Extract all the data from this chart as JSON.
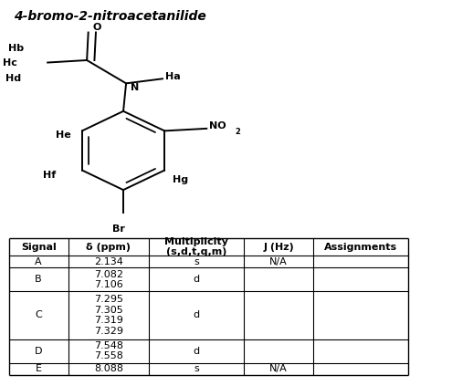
{
  "title": "4-bromo-2-nitroacetanilide",
  "table_headers": [
    "Signal",
    "δ (ppm)",
    "Multiplicity\n(s,d,t,q,m)",
    "J (Hz)",
    "Assignments"
  ],
  "table_rows": [
    [
      "A",
      "2.134",
      "s",
      "N/A",
      ""
    ],
    [
      "B",
      "7.082\n7.106",
      "d",
      "",
      ""
    ],
    [
      "C",
      "7.295\n7.305\n7.319\n7.329",
      "d",
      "",
      ""
    ],
    [
      "D",
      "7.548\n7.558",
      "d",
      "",
      ""
    ],
    [
      "E",
      "8.088",
      "s",
      "N/A",
      ""
    ]
  ],
  "bg_color": "#ffffff",
  "text_color": "#000000",
  "lw": 1.4,
  "fs_label": 8.0,
  "fs_table": 8.0
}
